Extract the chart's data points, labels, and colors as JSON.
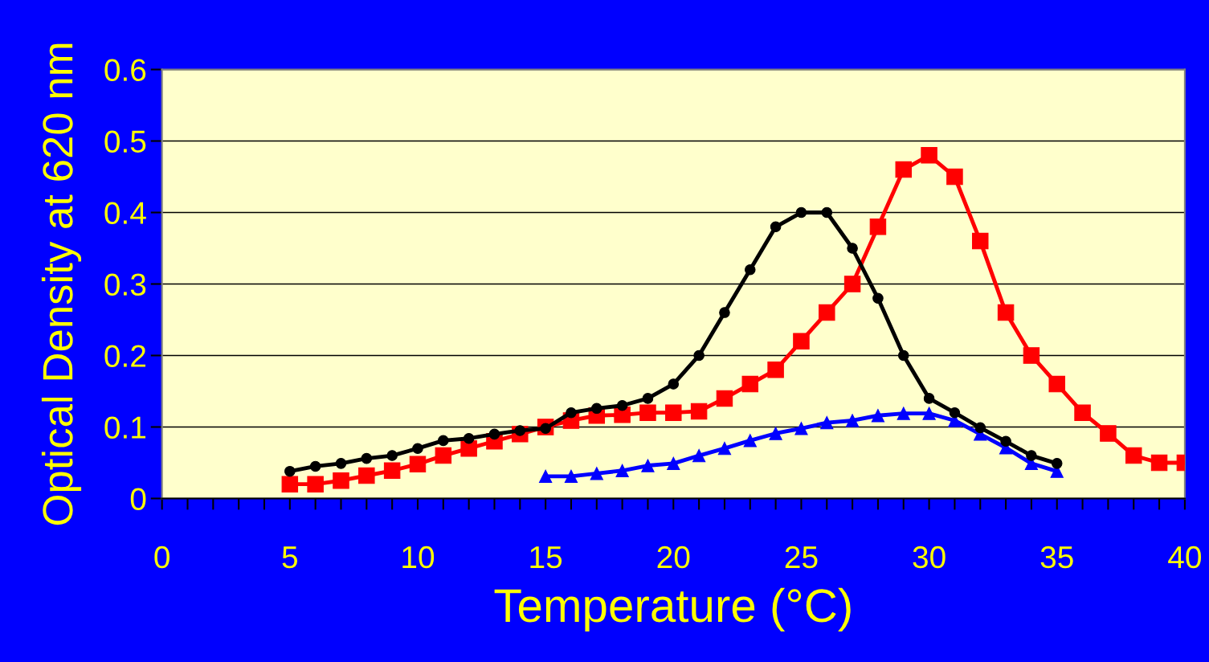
{
  "chart_data": {
    "type": "line",
    "xlabel": "Temperature (°C)",
    "ylabel": "Optical Density at 620 nm",
    "xlim": [
      0,
      40
    ],
    "ylim": [
      0,
      0.6
    ],
    "xticks": [
      0,
      {
        "value": 1,
        "label": null
      },
      {
        "value": 2,
        "label": null
      },
      {
        "value": 3,
        "label": null
      },
      {
        "value": 4,
        "label": null
      },
      5,
      {
        "value": 6,
        "label": null
      },
      {
        "value": 7,
        "label": null
      },
      {
        "value": 8,
        "label": null
      },
      {
        "value": 9,
        "label": null
      },
      10,
      {
        "value": 11,
        "label": null
      },
      {
        "value": 12,
        "label": null
      },
      {
        "value": 13,
        "label": null
      },
      {
        "value": 14,
        "label": null
      },
      15,
      {
        "value": 16,
        "label": null
      },
      {
        "value": 17,
        "label": null
      },
      {
        "value": 18,
        "label": null
      },
      {
        "value": 19,
        "label": null
      },
      20,
      {
        "value": 21,
        "label": null
      },
      {
        "value": 22,
        "label": null
      },
      {
        "value": 23,
        "label": null
      },
      {
        "value": 24,
        "label": null
      },
      25,
      {
        "value": 26,
        "label": null
      },
      {
        "value": 27,
        "label": null
      },
      {
        "value": 28,
        "label": null
      },
      {
        "value": 29,
        "label": null
      },
      30,
      {
        "value": 31,
        "label": null
      },
      {
        "value": 32,
        "label": null
      },
      {
        "value": 33,
        "label": null
      },
      {
        "value": 34,
        "label": null
      },
      35,
      {
        "value": 36,
        "label": null
      },
      {
        "value": 37,
        "label": null
      },
      {
        "value": 38,
        "label": null
      },
      {
        "value": 39,
        "label": null
      },
      40
    ],
    "yticks": [
      0,
      0.1,
      0.2,
      0.3,
      0.4,
      0.5,
      0.6
    ],
    "grid": "y",
    "legend": false,
    "line_style": "solid",
    "series": [
      {
        "color": "#000000",
        "marker": "circle",
        "x": [
          5,
          6,
          7,
          8,
          9,
          10,
          11,
          12,
          13,
          14,
          15,
          16,
          17,
          18,
          19,
          20,
          21,
          22,
          23,
          24,
          25,
          26,
          27,
          28,
          29,
          30,
          31,
          32,
          33,
          34,
          35
        ],
        "values": [
          0.038,
          0.045,
          0.049,
          0.056,
          0.06,
          0.07,
          0.081,
          0.084,
          0.09,
          0.095,
          0.098,
          0.12,
          0.126,
          0.13,
          0.14,
          0.16,
          0.2,
          0.26,
          0.32,
          0.38,
          0.4,
          0.4,
          0.35,
          0.28,
          0.2,
          0.14,
          0.12,
          0.099,
          0.08,
          0.06,
          0.049
        ]
      },
      {
        "color": "#ff0000",
        "marker": "square",
        "x": [
          5,
          6,
          7,
          8,
          9,
          10,
          11,
          12,
          13,
          14,
          15,
          16,
          17,
          18,
          19,
          20,
          21,
          22,
          23,
          24,
          25,
          26,
          27,
          28,
          29,
          30,
          31,
          32,
          33,
          34,
          35,
          36,
          37,
          38,
          39,
          40
        ],
        "values": [
          0.02,
          0.02,
          0.025,
          0.032,
          0.039,
          0.048,
          0.06,
          0.07,
          0.08,
          0.09,
          0.1,
          0.109,
          0.116,
          0.117,
          0.12,
          0.12,
          0.122,
          0.14,
          0.16,
          0.18,
          0.22,
          0.26,
          0.3,
          0.38,
          0.46,
          0.48,
          0.45,
          0.36,
          0.26,
          0.2,
          0.16,
          0.12,
          0.091,
          0.06,
          0.05,
          0.05
        ]
      },
      {
        "color": "#0000ff",
        "marker": "triangle",
        "x": [
          15,
          16,
          17,
          18,
          19,
          20,
          21,
          22,
          23,
          24,
          25,
          26,
          27,
          28,
          29,
          30,
          31,
          32,
          33,
          34,
          35
        ],
        "values": [
          0.031,
          0.031,
          0.035,
          0.039,
          0.046,
          0.049,
          0.06,
          0.07,
          0.081,
          0.091,
          0.098,
          0.106,
          0.109,
          0.116,
          0.119,
          0.119,
          0.109,
          0.09,
          0.071,
          0.049,
          0.038
        ]
      }
    ]
  }
}
